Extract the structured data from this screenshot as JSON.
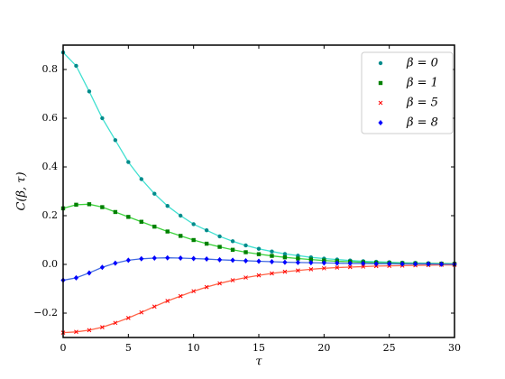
{
  "chart_data": {
    "type": "line",
    "x_label": "τ",
    "y_label": "C(β, τ)",
    "x": [
      0,
      1,
      2,
      3,
      4,
      5,
      6,
      7,
      8,
      9,
      10,
      11,
      12,
      13,
      14,
      15,
      16,
      17,
      18,
      19,
      20,
      21,
      22,
      23,
      24,
      25,
      26,
      27,
      28,
      29,
      30
    ],
    "series": [
      {
        "name": "β = 0",
        "color": "#008b8b",
        "line_color": "#40e0d0",
        "marker": "circle",
        "values": [
          0.87,
          0.815,
          0.71,
          0.6,
          0.51,
          0.42,
          0.35,
          0.29,
          0.24,
          0.2,
          0.165,
          0.14,
          0.115,
          0.095,
          0.078,
          0.064,
          0.053,
          0.043,
          0.036,
          0.029,
          0.024,
          0.02,
          0.016,
          0.013,
          0.011,
          0.009,
          0.007,
          0.006,
          0.005,
          0.004,
          0.003
        ]
      },
      {
        "name": "β = 1",
        "color": "#008000",
        "line_color": "#3cd23c",
        "marker": "square",
        "values": [
          0.23,
          0.245,
          0.247,
          0.235,
          0.215,
          0.195,
          0.175,
          0.155,
          0.135,
          0.117,
          0.1,
          0.085,
          0.072,
          0.06,
          0.05,
          0.042,
          0.035,
          0.029,
          0.024,
          0.02,
          0.016,
          0.013,
          0.011,
          0.009,
          0.007,
          0.006,
          0.005,
          0.004,
          0.003,
          0.003,
          0.002
        ]
      },
      {
        "name": "β = 5",
        "color": "#ff0000",
        "line_color": "#ff6347",
        "marker": "x",
        "values": [
          -0.28,
          -0.277,
          -0.27,
          -0.258,
          -0.24,
          -0.22,
          -0.197,
          -0.173,
          -0.15,
          -0.13,
          -0.11,
          -0.093,
          -0.078,
          -0.065,
          -0.054,
          -0.045,
          -0.037,
          -0.03,
          -0.025,
          -0.02,
          -0.016,
          -0.013,
          -0.011,
          -0.009,
          -0.007,
          -0.006,
          -0.005,
          -0.004,
          -0.003,
          -0.002,
          -0.002
        ]
      },
      {
        "name": "β = 8",
        "color": "#0000ff",
        "line_color": "#4169e1",
        "marker": "diamond",
        "values": [
          -0.065,
          -0.055,
          -0.035,
          -0.012,
          0.005,
          0.017,
          0.023,
          0.026,
          0.027,
          0.026,
          0.024,
          0.022,
          0.019,
          0.017,
          0.015,
          0.013,
          0.011,
          0.009,
          0.008,
          0.007,
          0.006,
          0.005,
          0.004,
          0.004,
          0.003,
          0.003,
          0.002,
          0.002,
          0.002,
          0.001,
          0.001
        ]
      }
    ],
    "xlim": [
      0,
      30
    ],
    "ylim": [
      -0.3,
      0.9
    ],
    "xticks": [
      0,
      5,
      10,
      15,
      20,
      25,
      30
    ],
    "yticks": [
      {
        "value": -0.2,
        "label": "−0.2"
      },
      {
        "value": 0,
        "label": "0.0"
      },
      0.2,
      0.4,
      0.6,
      0.8
    ],
    "legend": "upper right"
  }
}
